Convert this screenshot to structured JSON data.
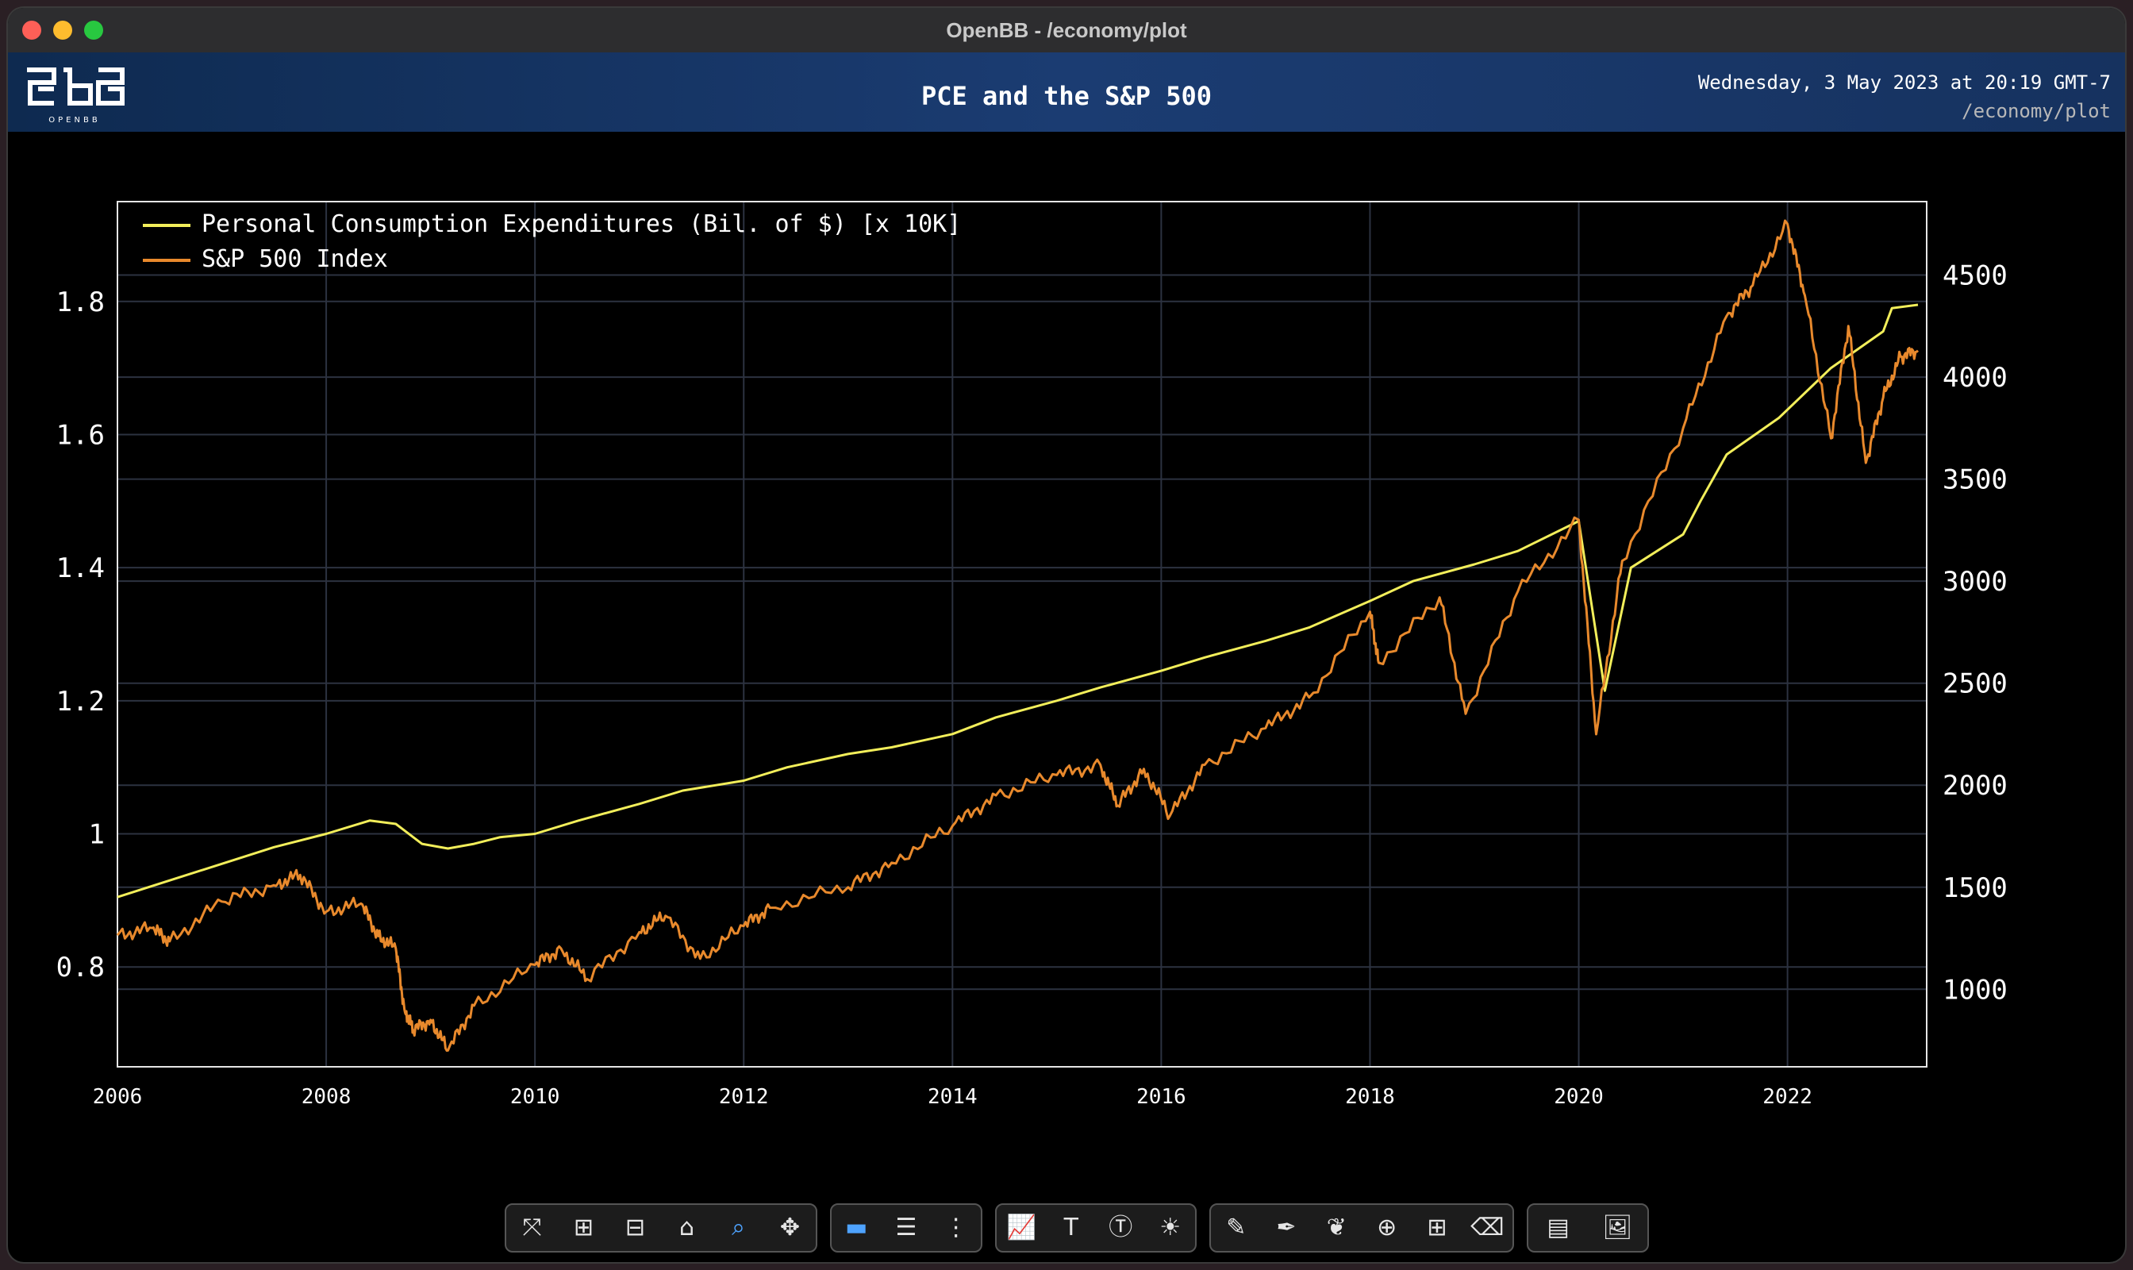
{
  "window": {
    "title": "OpenBB - /economy/plot"
  },
  "header": {
    "logo_text": "OPENBB",
    "title": "PCE and the S&P 500",
    "date": "Wednesday, 3 May 2023 at 20:19 GMT-7",
    "path": "/economy/plot"
  },
  "colors": {
    "pce": "#f2ee5a",
    "spx": "#e8892c",
    "grid": "#2c3240",
    "axis_text": "#ffffff",
    "header_bg": "#16325f"
  },
  "chart_data": {
    "type": "line",
    "title": "PCE and the S&P 500",
    "xlabel": "",
    "ylabel": "",
    "x_range": [
      "2006-01-01",
      "2023-04-30"
    ],
    "x_tick_labels": [
      "2006",
      "2008",
      "2010",
      "2012",
      "2014",
      "2016",
      "2018",
      "2020",
      "2022"
    ],
    "y_left": {
      "range": [
        0.65,
        1.95
      ],
      "tick_labels": [
        "0.8",
        "1",
        "1.2",
        "1.4",
        "1.6",
        "1.8"
      ]
    },
    "y_right": {
      "range": [
        620,
        4860
      ],
      "tick_labels": [
        "1000",
        "1500",
        "2000",
        "2500",
        "3000",
        "3500",
        "4000",
        "4500"
      ]
    },
    "grid": true,
    "legend_position": "top-left",
    "series": [
      {
        "name": "Personal Consumption Expenditures (Bil. of $) [x 10K]",
        "axis": "left",
        "color": "#f2ee5a",
        "points": [
          [
            "2006-01",
            0.905
          ],
          [
            "2006-07",
            0.93
          ],
          [
            "2007-01",
            0.955
          ],
          [
            "2007-07",
            0.98
          ],
          [
            "2008-01",
            1.0
          ],
          [
            "2008-06",
            1.02
          ],
          [
            "2008-09",
            1.015
          ],
          [
            "2008-12",
            0.985
          ],
          [
            "2009-03",
            0.978
          ],
          [
            "2009-06",
            0.985
          ],
          [
            "2009-09",
            0.995
          ],
          [
            "2010-01",
            1.0
          ],
          [
            "2010-06",
            1.02
          ],
          [
            "2011-01",
            1.045
          ],
          [
            "2011-06",
            1.065
          ],
          [
            "2012-01",
            1.08
          ],
          [
            "2012-06",
            1.1
          ],
          [
            "2013-01",
            1.12
          ],
          [
            "2013-06",
            1.13
          ],
          [
            "2014-01",
            1.15
          ],
          [
            "2014-06",
            1.175
          ],
          [
            "2015-01",
            1.2
          ],
          [
            "2015-06",
            1.22
          ],
          [
            "2016-01",
            1.245
          ],
          [
            "2016-06",
            1.265
          ],
          [
            "2017-01",
            1.29
          ],
          [
            "2017-06",
            1.31
          ],
          [
            "2018-01",
            1.35
          ],
          [
            "2018-06",
            1.38
          ],
          [
            "2019-01",
            1.405
          ],
          [
            "2019-06",
            1.425
          ],
          [
            "2020-01",
            1.47
          ],
          [
            "2020-04",
            1.215
          ],
          [
            "2020-07",
            1.4
          ],
          [
            "2021-01",
            1.45
          ],
          [
            "2021-03",
            1.5
          ],
          [
            "2021-06",
            1.57
          ],
          [
            "2021-12",
            1.625
          ],
          [
            "2022-06",
            1.7
          ],
          [
            "2022-12",
            1.755
          ],
          [
            "2023-01",
            1.79
          ],
          [
            "2023-04",
            1.795
          ]
        ]
      },
      {
        "name": "S&P 500 Index",
        "axis": "right",
        "color": "#e8892c",
        "points": [
          [
            "2006-01",
            1265
          ],
          [
            "2006-05",
            1300
          ],
          [
            "2006-07",
            1235
          ],
          [
            "2007-01",
            1430
          ],
          [
            "2007-07",
            1510
          ],
          [
            "2007-10",
            1560
          ],
          [
            "2008-01",
            1380
          ],
          [
            "2008-05",
            1420
          ],
          [
            "2008-07",
            1260
          ],
          [
            "2008-09",
            1200
          ],
          [
            "2008-10",
            900
          ],
          [
            "2008-11",
            800
          ],
          [
            "2009-01",
            850
          ],
          [
            "2009-03",
            700
          ],
          [
            "2009-06",
            920
          ],
          [
            "2010-01",
            1120
          ],
          [
            "2010-04",
            1200
          ],
          [
            "2010-07",
            1050
          ],
          [
            "2011-01",
            1280
          ],
          [
            "2011-04",
            1360
          ],
          [
            "2011-08",
            1150
          ],
          [
            "2012-01",
            1310
          ],
          [
            "2012-04",
            1400
          ],
          [
            "2013-01",
            1500
          ],
          [
            "2013-06",
            1620
          ],
          [
            "2014-01",
            1800
          ],
          [
            "2014-06",
            1950
          ],
          [
            "2015-01",
            2050
          ],
          [
            "2015-06",
            2100
          ],
          [
            "2015-08",
            1900
          ],
          [
            "2015-11",
            2080
          ],
          [
            "2016-02",
            1850
          ],
          [
            "2016-06",
            2100
          ],
          [
            "2017-01",
            2280
          ],
          [
            "2017-06",
            2430
          ],
          [
            "2018-01",
            2850
          ],
          [
            "2018-02",
            2600
          ],
          [
            "2018-09",
            2920
          ],
          [
            "2018-12",
            2350
          ],
          [
            "2019-06",
            2950
          ],
          [
            "2020-01",
            3300
          ],
          [
            "2020-03",
            2250
          ],
          [
            "2020-06",
            3100
          ],
          [
            "2021-01",
            3750
          ],
          [
            "2021-06",
            4300
          ],
          [
            "2021-09",
            4450
          ],
          [
            "2022-01",
            4750
          ],
          [
            "2022-03",
            4400
          ],
          [
            "2022-06",
            3700
          ],
          [
            "2022-08",
            4250
          ],
          [
            "2022-10",
            3580
          ],
          [
            "2022-12",
            3900
          ],
          [
            "2023-02",
            4100
          ],
          [
            "2023-04",
            4130
          ]
        ]
      }
    ]
  },
  "toolbar": {
    "groups": [
      [
        "autoscale-icon",
        "zoom-in-icon",
        "zoom-out-icon",
        "home-icon",
        "zoom-icon",
        "pan-icon"
      ],
      [
        "hover-closest-icon",
        "hover-compare-icon",
        "spike-lines-icon"
      ],
      [
        "add-indicator-icon",
        "add-text-icon",
        "change-title-icon",
        "toggle-theme-icon"
      ],
      [
        "draw-line-icon",
        "draw-open-path-icon",
        "draw-closed-path-icon",
        "draw-circle-icon",
        "draw-rect-icon",
        "erase-shape-icon"
      ],
      [
        "download-csv-icon",
        "download-image-icon"
      ]
    ]
  }
}
